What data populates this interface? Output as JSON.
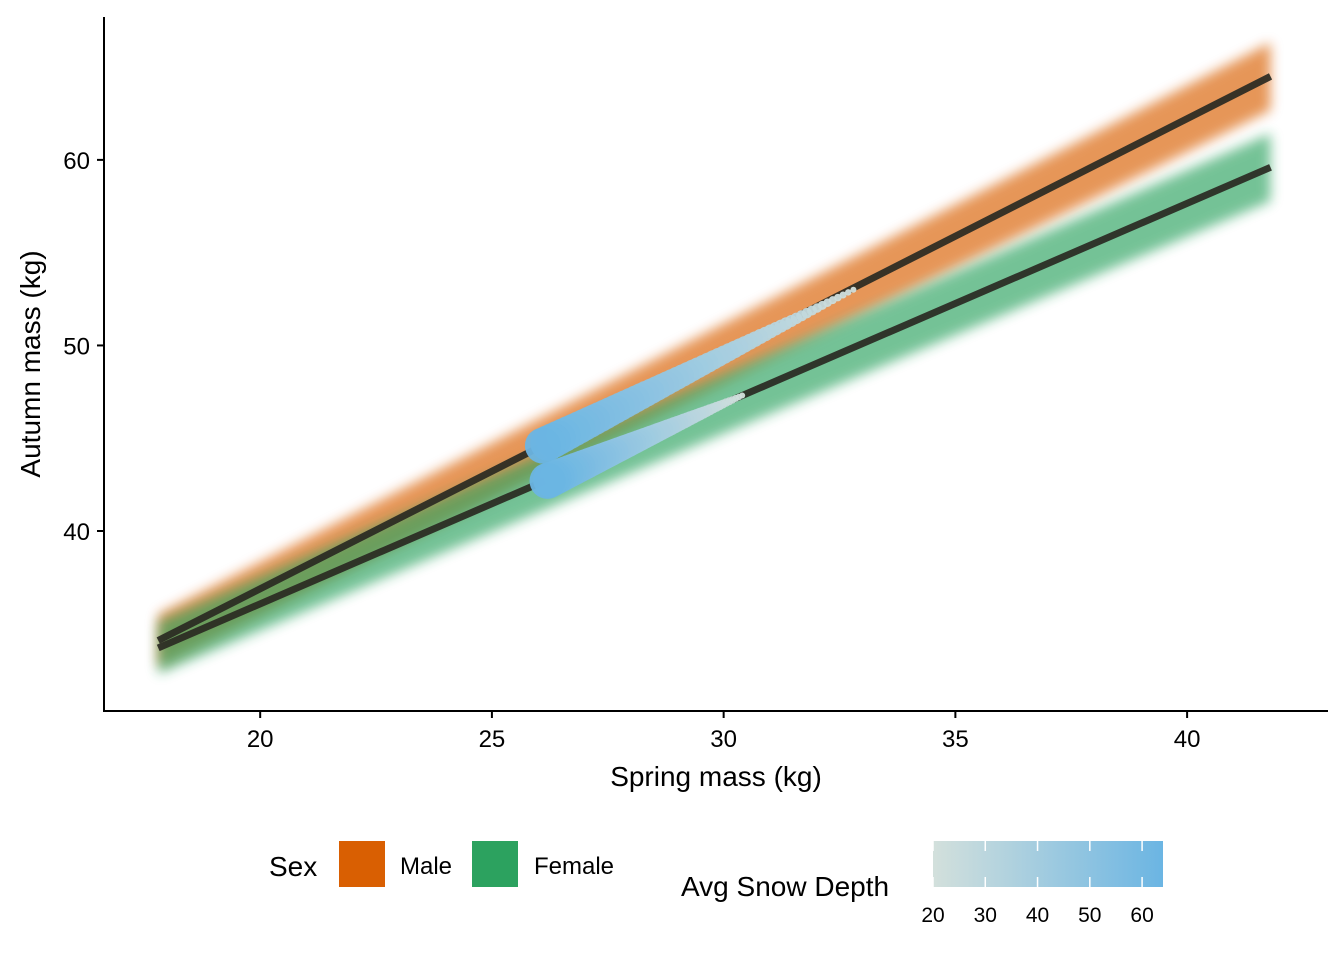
{
  "chart_data": {
    "type": "line",
    "xlabel": "Spring mass (kg)",
    "ylabel": "Autumn mass (kg)",
    "xlim": [
      16.63,
      43.04
    ],
    "ylim": [
      30.3,
      67.7
    ],
    "xticks": [
      20,
      25,
      30,
      35,
      40
    ],
    "yticks": [
      40,
      50,
      60
    ],
    "grid": false,
    "series": [
      {
        "name": "Male",
        "color": "#D95F02",
        "x": [
          17.8,
          41.8
        ],
        "y": [
          34.1,
          64.5
        ],
        "band": 1.4
      },
      {
        "name": "Female",
        "color": "#2CA25F",
        "x": [
          17.8,
          41.8
        ],
        "y": [
          33.7,
          59.6
        ],
        "band": 1.4
      }
    ],
    "trajectories": [
      {
        "sex": "Male",
        "start": [
          26.1,
          44.6
        ],
        "end": [
          32.8,
          53.0
        ],
        "snow_start": 64,
        "snow_end": 20
      },
      {
        "sex": "Female",
        "start": [
          26.2,
          42.7
        ],
        "end": [
          30.4,
          47.3
        ],
        "snow_start": 64,
        "snow_end": 20
      }
    ],
    "legend": {
      "placement": "bottom",
      "sex_title": "Sex",
      "sex_items": [
        {
          "label": "Male",
          "color": "#D95F02"
        },
        {
          "label": "Female",
          "color": "#2CA25F"
        }
      ],
      "snow_title": "Avg Snow Depth",
      "snow_range": [
        20,
        64
      ],
      "snow_ticks": [
        "20",
        "30",
        "40",
        "50",
        "60"
      ],
      "snow_low_color": "#D3E0DC",
      "snow_high_color": "#6BB5E3"
    },
    "line_color": "#2a2a22"
  }
}
